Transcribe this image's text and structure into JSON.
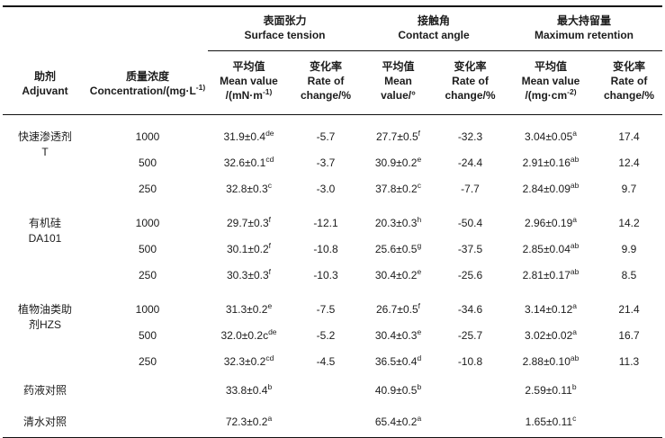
{
  "table": {
    "adjuvant_header": [
      "助剂",
      "Adjuvant"
    ],
    "concentration_header": [
      "质量浓度",
      "Concentration/(mg·L^-1)"
    ],
    "groups": [
      {
        "zh": "表面张力",
        "en": "Surface tension",
        "mean": [
          "平均值",
          "Mean value",
          "/(mN·m^-1)"
        ],
        "rate": [
          "变化率",
          "Rate of",
          "change/%"
        ]
      },
      {
        "zh": "接触角",
        "en": "Contact angle",
        "mean": [
          "平均值",
          "Mean",
          "value/°"
        ],
        "rate": [
          "变化率",
          "Rate of",
          "change/%"
        ]
      },
      {
        "zh": "最大持留量",
        "en": "Maximum retention",
        "mean": [
          "平均值",
          "Mean value",
          "/(mg·cm^-2)"
        ],
        "rate": [
          "变化率",
          "Rate of",
          "change/%"
        ]
      }
    ],
    "row_groups": [
      {
        "label": [
          "快速渗透剂",
          "T"
        ],
        "rows": [
          {
            "concentration": "1000",
            "st_mean": "31.9±0.4^de",
            "st_rate": "-5.7",
            "ca_mean": "27.7±0.5^f",
            "ca_rate": "-32.3",
            "mr_mean": "3.04±0.05^a",
            "mr_rate": "17.4"
          },
          {
            "concentration": "500",
            "st_mean": "32.6±0.1^cd",
            "st_rate": "-3.7",
            "ca_mean": "30.9±0.2^e",
            "ca_rate": "-24.4",
            "mr_mean": "2.91±0.16^ab",
            "mr_rate": "12.4"
          },
          {
            "concentration": "250",
            "st_mean": "32.8±0.3^c",
            "st_rate": "-3.0",
            "ca_mean": "37.8±0.2^c",
            "ca_rate": "-7.7",
            "mr_mean": "2.84±0.09^ab",
            "mr_rate": "9.7"
          }
        ]
      },
      {
        "label": [
          "有机硅",
          "DA101"
        ],
        "rows": [
          {
            "concentration": "1000",
            "st_mean": "29.7±0.3^f",
            "st_rate": "-12.1",
            "ca_mean": "20.3±0.3^h",
            "ca_rate": "-50.4",
            "mr_mean": "2.96±0.19^a",
            "mr_rate": "14.2"
          },
          {
            "concentration": "500",
            "st_mean": "30.1±0.2^f",
            "st_rate": "-10.8",
            "ca_mean": "25.6±0.5^g",
            "ca_rate": "-37.5",
            "mr_mean": "2.85±0.04^ab",
            "mr_rate": "9.9"
          },
          {
            "concentration": "250",
            "st_mean": "30.3±0.3^f",
            "st_rate": "-10.3",
            "ca_mean": "30.4±0.2^e",
            "ca_rate": "-25.6",
            "mr_mean": "2.81±0.17^ab",
            "mr_rate": "8.5"
          }
        ]
      },
      {
        "label": [
          "植物油类助",
          "剂HZS"
        ],
        "rows": [
          {
            "concentration": "1000",
            "st_mean": "31.3±0.2^e",
            "st_rate": "-7.5",
            "ca_mean": "26.7±0.5^f",
            "ca_rate": "-34.6",
            "mr_mean": "3.14±0.12^a",
            "mr_rate": "21.4"
          },
          {
            "concentration": "500",
            "st_mean": "32.0±0.2c^de",
            "st_rate": "-5.2",
            "ca_mean": "30.4±0.3^e",
            "ca_rate": "-25.7",
            "mr_mean": "3.02±0.02^a",
            "mr_rate": "16.7"
          },
          {
            "concentration": "250",
            "st_mean": "32.3±0.2^cd",
            "st_rate": "-4.5",
            "ca_mean": "36.5±0.4^d",
            "ca_rate": "-10.8",
            "mr_mean": "2.88±0.10^ab",
            "mr_rate": "11.3"
          }
        ]
      }
    ],
    "control_rows": [
      {
        "label": "药液对照",
        "concentration": "",
        "st_mean": "33.8±0.4^b",
        "st_rate": "",
        "ca_mean": "40.9±0.5^b",
        "ca_rate": "",
        "mr_mean": "2.59±0.11^b",
        "mr_rate": ""
      },
      {
        "label": "清水对照",
        "concentration": "",
        "st_mean": "72.3±0.2^a",
        "st_rate": "",
        "ca_mean": "65.4±0.2^a",
        "ca_rate": "",
        "mr_mean": "1.65±0.11^c",
        "mr_rate": ""
      }
    ]
  }
}
